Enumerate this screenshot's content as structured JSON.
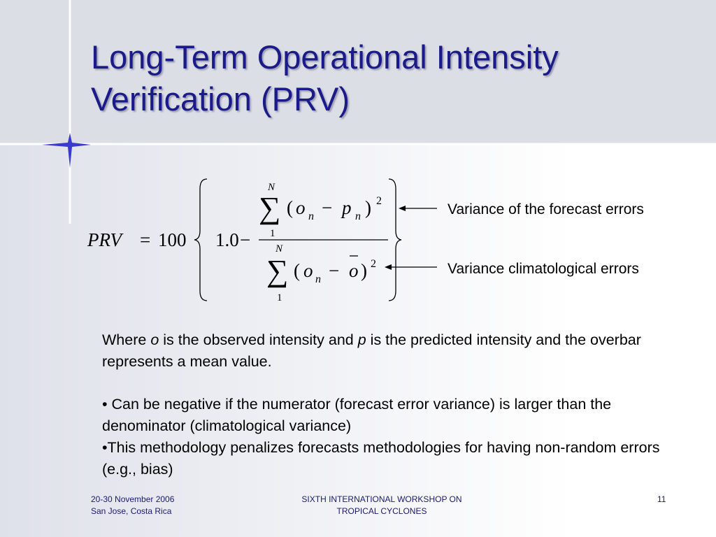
{
  "title": {
    "lines": [
      "Long-Term Operational Intensity",
      "Verification (PRV)"
    ]
  },
  "formula": {
    "lhs": "PRV",
    "equals": "=",
    "factor": "100",
    "one": "1.0",
    "minus": "−",
    "numerator": {
      "upper": "N",
      "lower": "1",
      "sum": "∑",
      "open": "(",
      "o": "o",
      "sub1": "n",
      "minus": "−",
      "p": "p",
      "sub2": "n",
      "close": ")",
      "exp": "2"
    },
    "denominator": {
      "upper": "N",
      "lower": "1",
      "sum": "∑",
      "open": "(",
      "o": "o",
      "sub1": "n",
      "minus": "−",
      "obar": "o",
      "close": ")",
      "exp": "2"
    }
  },
  "annotations": [
    "Variance of the forecast errors",
    "Variance climatological errors"
  ],
  "body": {
    "paragraph": [
      "Where ",
      "o",
      " is the observed intensity and ",
      "p",
      " is the predicted intensity and the overbar represents a mean value."
    ],
    "bullets": [
      "• Can be negative if the numerator (forecast error variance) is larger than the denominator (climatological variance)",
      "•This methodology penalizes forecasts methodologies for having non-random errors (e.g., bias)"
    ]
  },
  "footer": {
    "date": "20-30 November 2006",
    "place": "San Jose, Costa Rica",
    "event": [
      "SIXTH INTERNATIONAL WORKSHOP ON",
      "TROPICAL CYCLONES"
    ],
    "page": "11"
  }
}
